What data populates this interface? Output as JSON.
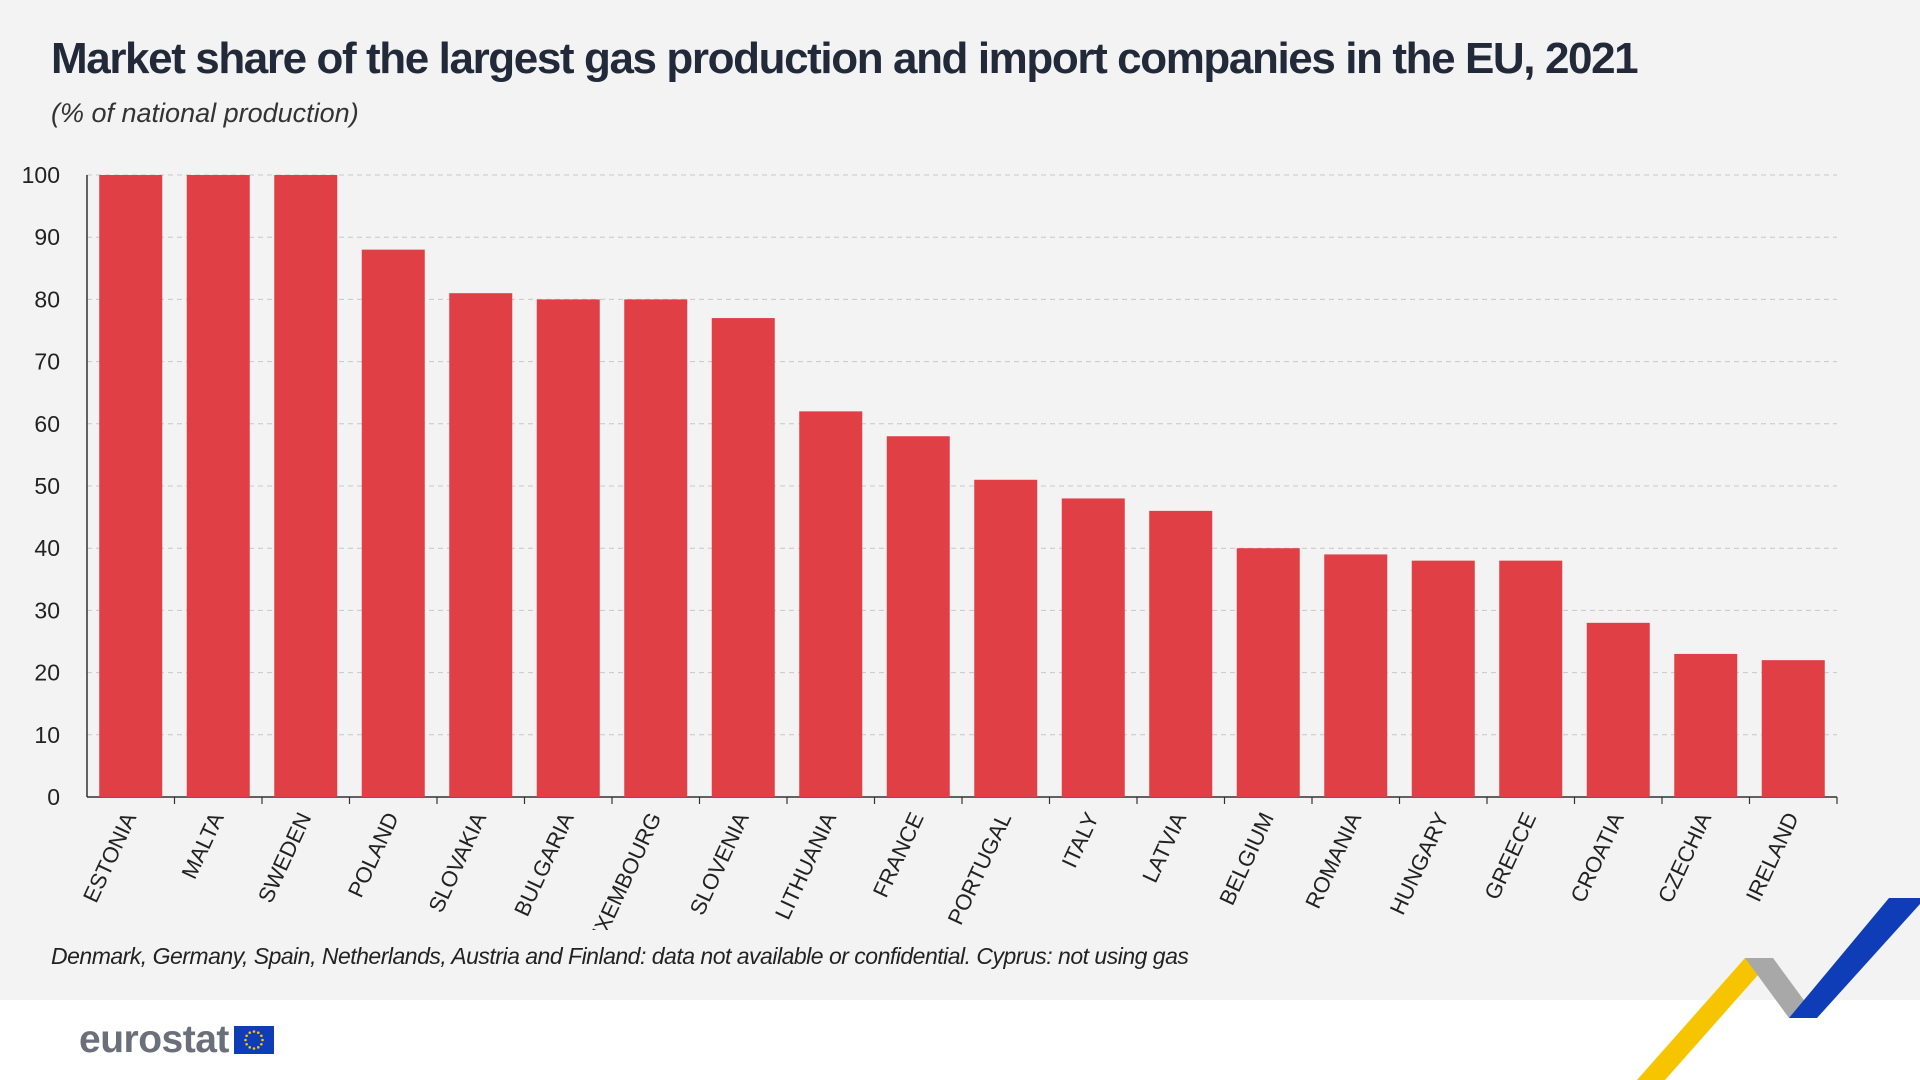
{
  "header": {
    "title": "Market share of the largest gas production and import companies in the EU, 2021",
    "subtitle": "(% of national production)"
  },
  "footnote": "Denmark, Germany, Spain, Netherlands, Austria and Finland: data not available or confidential. Cyprus: not using gas",
  "logo": {
    "text": "eurostat"
  },
  "colors": {
    "bar": "#e04045",
    "grid": "#c8c8c8",
    "axis": "#333333",
    "logo_yellow": "#f6c500",
    "logo_blue": "#0f3db8",
    "logo_gray": "#a8a8a8"
  },
  "chart_data": {
    "type": "bar",
    "title": "Market share of the largest gas production and import companies in the EU, 2021",
    "subtitle": "(% of national production)",
    "ylim": [
      0,
      100
    ],
    "yticks": [
      0,
      10,
      20,
      30,
      40,
      50,
      60,
      70,
      80,
      90,
      100
    ],
    "grid": true,
    "categories": [
      "ESTONIA",
      "MALTA",
      "SWEDEN",
      "POLAND",
      "SLOVAKIA",
      "BULGARIA",
      "LUXEMBOURG",
      "SLOVENIA",
      "LITHUANIA",
      "FRANCE",
      "PORTUGAL",
      "ITALY",
      "LATVIA",
      "BELGIUM",
      "ROMANIA",
      "HUNGARY",
      "GREECE",
      "CROATIA",
      "CZECHIA",
      "IRELAND"
    ],
    "values": [
      100,
      100,
      100,
      88,
      81,
      80,
      80,
      77,
      62,
      58,
      51,
      48,
      46,
      40,
      39,
      38,
      38,
      28,
      23,
      22
    ]
  }
}
